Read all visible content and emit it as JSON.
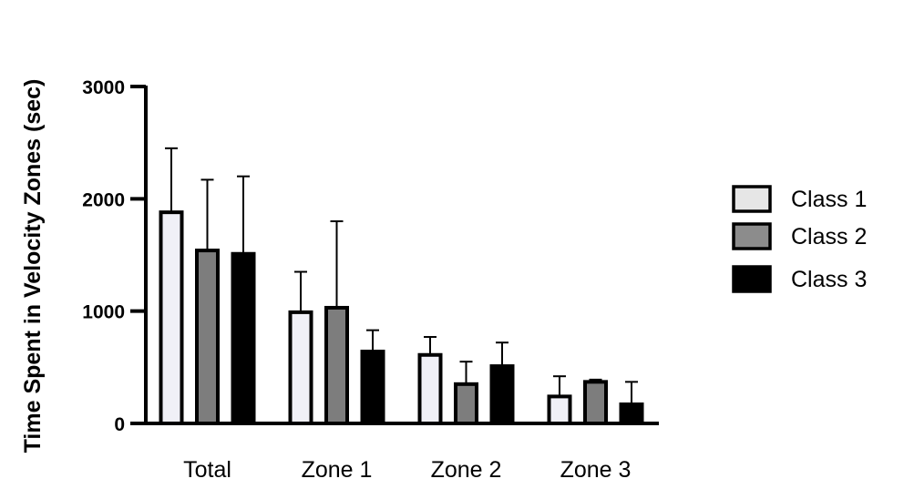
{
  "chart_data": {
    "type": "bar",
    "title": "",
    "xlabel": "",
    "ylabel": "Time Spent in Velocity Zones (sec)",
    "ylim": [
      0,
      3000
    ],
    "yticks": [
      0,
      1000,
      2000,
      3000
    ],
    "categories": [
      "Total",
      "Zone 1",
      "Zone 2",
      "Zone 3"
    ],
    "series": [
      {
        "name": "Class 1",
        "color": "#f0f0f7",
        "values": [
          1880,
          990,
          610,
          240
        ],
        "errors": [
          570,
          360,
          160,
          180
        ]
      },
      {
        "name": "Class 2",
        "color": "#7d7d7d",
        "values": [
          1540,
          1030,
          350,
          370
        ],
        "errors": [
          630,
          770,
          200,
          20
        ]
      },
      {
        "name": "Class 3",
        "color": "#000000",
        "values": [
          1510,
          640,
          510,
          170
        ],
        "errors": [
          690,
          190,
          210,
          200
        ]
      }
    ],
    "legend_position": "right",
    "grid": false
  },
  "legend": {
    "items": [
      {
        "label": "Class 1",
        "color": "#e6e6e6"
      },
      {
        "label": "Class 2",
        "color": "#8c8c8c"
      },
      {
        "label": "Class 3",
        "color": "#000000"
      }
    ]
  }
}
